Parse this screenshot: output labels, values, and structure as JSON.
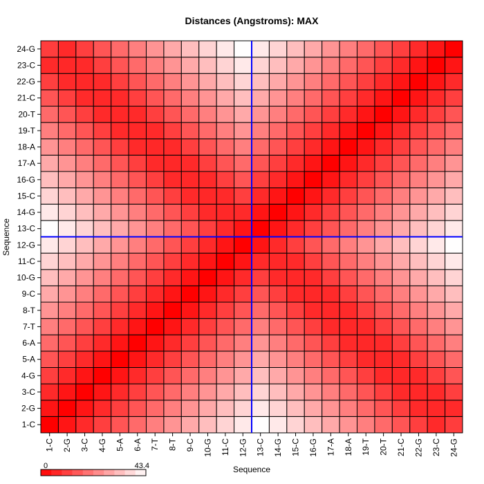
{
  "chart_data": {
    "type": "heatmap",
    "title": "Distances (Angstroms):  MAX",
    "xlabel": "Sequence",
    "ylabel": "Sequence",
    "categories": [
      "1-C",
      "2-G",
      "3-C",
      "4-G",
      "5-A",
      "6-A",
      "7-T",
      "8-T",
      "9-C",
      "10-G",
      "11-C",
      "12-G",
      "13-C",
      "14-G",
      "15-C",
      "16-G",
      "17-A",
      "18-A",
      "19-T",
      "20-T",
      "21-C",
      "22-G",
      "23-C",
      "24-G"
    ],
    "value_range": [
      0,
      43.4
    ],
    "legend_min_label": "0",
    "legend_max_label": "43.4",
    "color_low": "#ff0000",
    "color_high": "#ffffff",
    "grid_line_color": "#000000",
    "divider_color": "#0000ff",
    "divider_after_index": 12,
    "grid": true,
    "legend_position": "bottom-left",
    "values": [
      [
        0,
        3.6,
        7.2,
        10.8,
        14.4,
        18,
        21.6,
        25.2,
        28.8,
        32.4,
        36,
        39.6,
        43.2,
        39.6,
        36,
        32.4,
        28.8,
        25.2,
        21.6,
        18,
        14.4,
        10.8,
        7.2,
        10.4
      ],
      [
        3.6,
        0,
        3.6,
        7.2,
        10.8,
        14.4,
        18,
        21.6,
        25.2,
        28.8,
        32.4,
        36,
        39.6,
        36,
        32.4,
        28.8,
        25.2,
        21.6,
        18,
        14.4,
        10.8,
        7.2,
        6.8,
        7.2
      ],
      [
        7.2,
        3.6,
        0,
        3.6,
        7.2,
        10.8,
        14.4,
        18,
        21.6,
        25.2,
        28.8,
        32.4,
        36,
        32.4,
        28.8,
        25.2,
        21.6,
        18,
        14.4,
        10.8,
        7.2,
        6.8,
        7.2,
        10.8
      ],
      [
        10.8,
        7.2,
        3.6,
        0,
        3.6,
        7.2,
        10.8,
        14.4,
        18,
        21.6,
        25.2,
        28.8,
        32.4,
        28.8,
        25.2,
        21.6,
        18,
        14.4,
        10.8,
        7.2,
        6.8,
        7.2,
        10.8,
        14.4
      ],
      [
        14.4,
        10.8,
        7.2,
        3.6,
        0,
        3.6,
        7.2,
        10.8,
        14.4,
        18,
        21.6,
        25.2,
        28.8,
        25.2,
        21.6,
        18,
        14.4,
        10.8,
        7.2,
        6.8,
        7.2,
        10.8,
        14.4,
        18
      ],
      [
        18,
        14.4,
        10.8,
        7.2,
        3.6,
        0,
        3.6,
        7.2,
        10.8,
        14.4,
        18,
        21.6,
        25.2,
        21.6,
        18,
        14.4,
        10.8,
        7.2,
        6.8,
        7.2,
        10.8,
        14.4,
        18,
        21.6
      ],
      [
        21.6,
        18,
        14.4,
        10.8,
        7.2,
        3.6,
        0,
        3.6,
        7.2,
        10.8,
        14.4,
        18,
        21.6,
        18,
        14.4,
        10.8,
        7.2,
        6.8,
        7.2,
        10.8,
        14.4,
        18,
        21.6,
        25.2
      ],
      [
        25.2,
        21.6,
        18,
        14.4,
        10.8,
        7.2,
        3.6,
        0,
        3.6,
        7.2,
        10.8,
        14.4,
        18,
        14.4,
        10.8,
        7.2,
        6.8,
        7.2,
        10.8,
        14.4,
        18,
        21.6,
        25.2,
        28.8
      ],
      [
        28.8,
        25.2,
        21.6,
        18,
        14.4,
        10.8,
        7.2,
        3.6,
        0,
        3.6,
        7.2,
        10.8,
        14.4,
        10.8,
        7.2,
        6.8,
        7.2,
        10.8,
        14.4,
        18,
        21.6,
        25.2,
        28.8,
        32.4
      ],
      [
        32.4,
        28.8,
        25.2,
        21.6,
        18,
        14.4,
        10.8,
        7.2,
        3.6,
        0,
        3.6,
        7.2,
        10.8,
        7.2,
        6.8,
        7.2,
        10.8,
        14.4,
        18,
        21.6,
        25.2,
        28.8,
        32.4,
        36
      ],
      [
        36,
        32.4,
        28.8,
        25.2,
        21.6,
        18,
        14.4,
        10.8,
        7.2,
        3.6,
        0,
        3.6,
        7.2,
        6.8,
        7.2,
        10.8,
        14.4,
        18,
        21.6,
        25.2,
        28.8,
        32.4,
        36,
        39.6
      ],
      [
        39.6,
        36,
        32.4,
        28.8,
        25.2,
        21.6,
        18,
        14.4,
        10.8,
        7.2,
        3.6,
        0,
        3.6,
        7.2,
        10.8,
        14.4,
        18,
        21.6,
        25.2,
        28.8,
        32.4,
        36,
        39.6,
        43.2
      ],
      [
        43.2,
        39.6,
        36,
        32.4,
        28.8,
        25.2,
        21.6,
        18,
        14.4,
        10.8,
        7.2,
        3.6,
        0,
        3.6,
        7.2,
        10.8,
        14.4,
        18,
        21.6,
        25.2,
        28.8,
        32.4,
        36,
        39.6
      ],
      [
        39.6,
        36,
        32.4,
        28.8,
        25.2,
        21.6,
        18,
        14.4,
        10.8,
        7.2,
        6.8,
        7.2,
        3.6,
        0,
        3.6,
        7.2,
        10.8,
        14.4,
        18,
        21.6,
        25.2,
        28.8,
        32.4,
        36
      ],
      [
        36,
        32.4,
        28.8,
        25.2,
        21.6,
        18,
        14.4,
        10.8,
        7.2,
        6.8,
        7.2,
        10.8,
        7.2,
        3.6,
        0,
        3.6,
        7.2,
        10.8,
        14.4,
        18,
        21.6,
        25.2,
        28.8,
        32.4
      ],
      [
        32.4,
        28.8,
        25.2,
        21.6,
        18,
        14.4,
        10.8,
        7.2,
        6.8,
        7.2,
        10.8,
        14.4,
        10.8,
        7.2,
        3.6,
        0,
        3.6,
        7.2,
        10.8,
        14.4,
        18,
        21.6,
        25.2,
        28.8
      ],
      [
        28.8,
        25.2,
        21.6,
        18,
        14.4,
        10.8,
        7.2,
        6.8,
        7.2,
        10.8,
        14.4,
        18,
        14.4,
        10.8,
        7.2,
        3.6,
        0,
        3.6,
        7.2,
        10.8,
        14.4,
        18,
        21.6,
        25.2
      ],
      [
        25.2,
        21.6,
        18,
        14.4,
        10.8,
        7.2,
        6.8,
        7.2,
        10.8,
        14.4,
        18,
        21.6,
        18,
        14.4,
        10.8,
        7.2,
        3.6,
        0,
        3.6,
        7.2,
        10.8,
        14.4,
        18,
        21.6
      ],
      [
        21.6,
        18,
        14.4,
        10.8,
        7.2,
        6.8,
        7.2,
        10.8,
        14.4,
        18,
        21.6,
        25.2,
        21.6,
        18,
        14.4,
        10.8,
        7.2,
        3.6,
        0,
        3.6,
        7.2,
        10.8,
        14.4,
        18
      ],
      [
        18,
        14.4,
        10.8,
        7.2,
        6.8,
        7.2,
        10.8,
        14.4,
        18,
        21.6,
        25.2,
        28.8,
        25.2,
        21.6,
        18,
        14.4,
        10.8,
        7.2,
        3.6,
        0,
        3.6,
        7.2,
        10.8,
        14.4
      ],
      [
        14.4,
        10.8,
        7.2,
        6.8,
        7.2,
        10.8,
        14.4,
        18,
        21.6,
        25.2,
        28.8,
        32.4,
        28.8,
        25.2,
        21.6,
        18,
        14.4,
        10.8,
        7.2,
        3.6,
        0,
        3.6,
        7.2,
        10.8
      ],
      [
        10.8,
        7.2,
        6.8,
        7.2,
        10.8,
        14.4,
        18,
        21.6,
        25.2,
        28.8,
        32.4,
        36,
        32.4,
        28.8,
        25.2,
        21.6,
        18,
        14.4,
        10.8,
        7.2,
        3.6,
        0,
        3.6,
        7.2
      ],
      [
        7.2,
        6.8,
        7.2,
        10.8,
        14.4,
        18,
        21.6,
        25.2,
        28.8,
        32.4,
        36,
        39.6,
        36,
        32.4,
        28.8,
        25.2,
        21.6,
        18,
        14.4,
        10.8,
        7.2,
        3.6,
        0,
        3.6
      ],
      [
        10.4,
        7.2,
        10.8,
        14.4,
        18,
        21.6,
        25.2,
        28.8,
        32.4,
        36,
        39.6,
        43.2,
        39.6,
        36,
        32.4,
        28.8,
        25.2,
        21.6,
        18,
        14.4,
        10.8,
        7.2,
        3.6,
        0
      ]
    ]
  }
}
